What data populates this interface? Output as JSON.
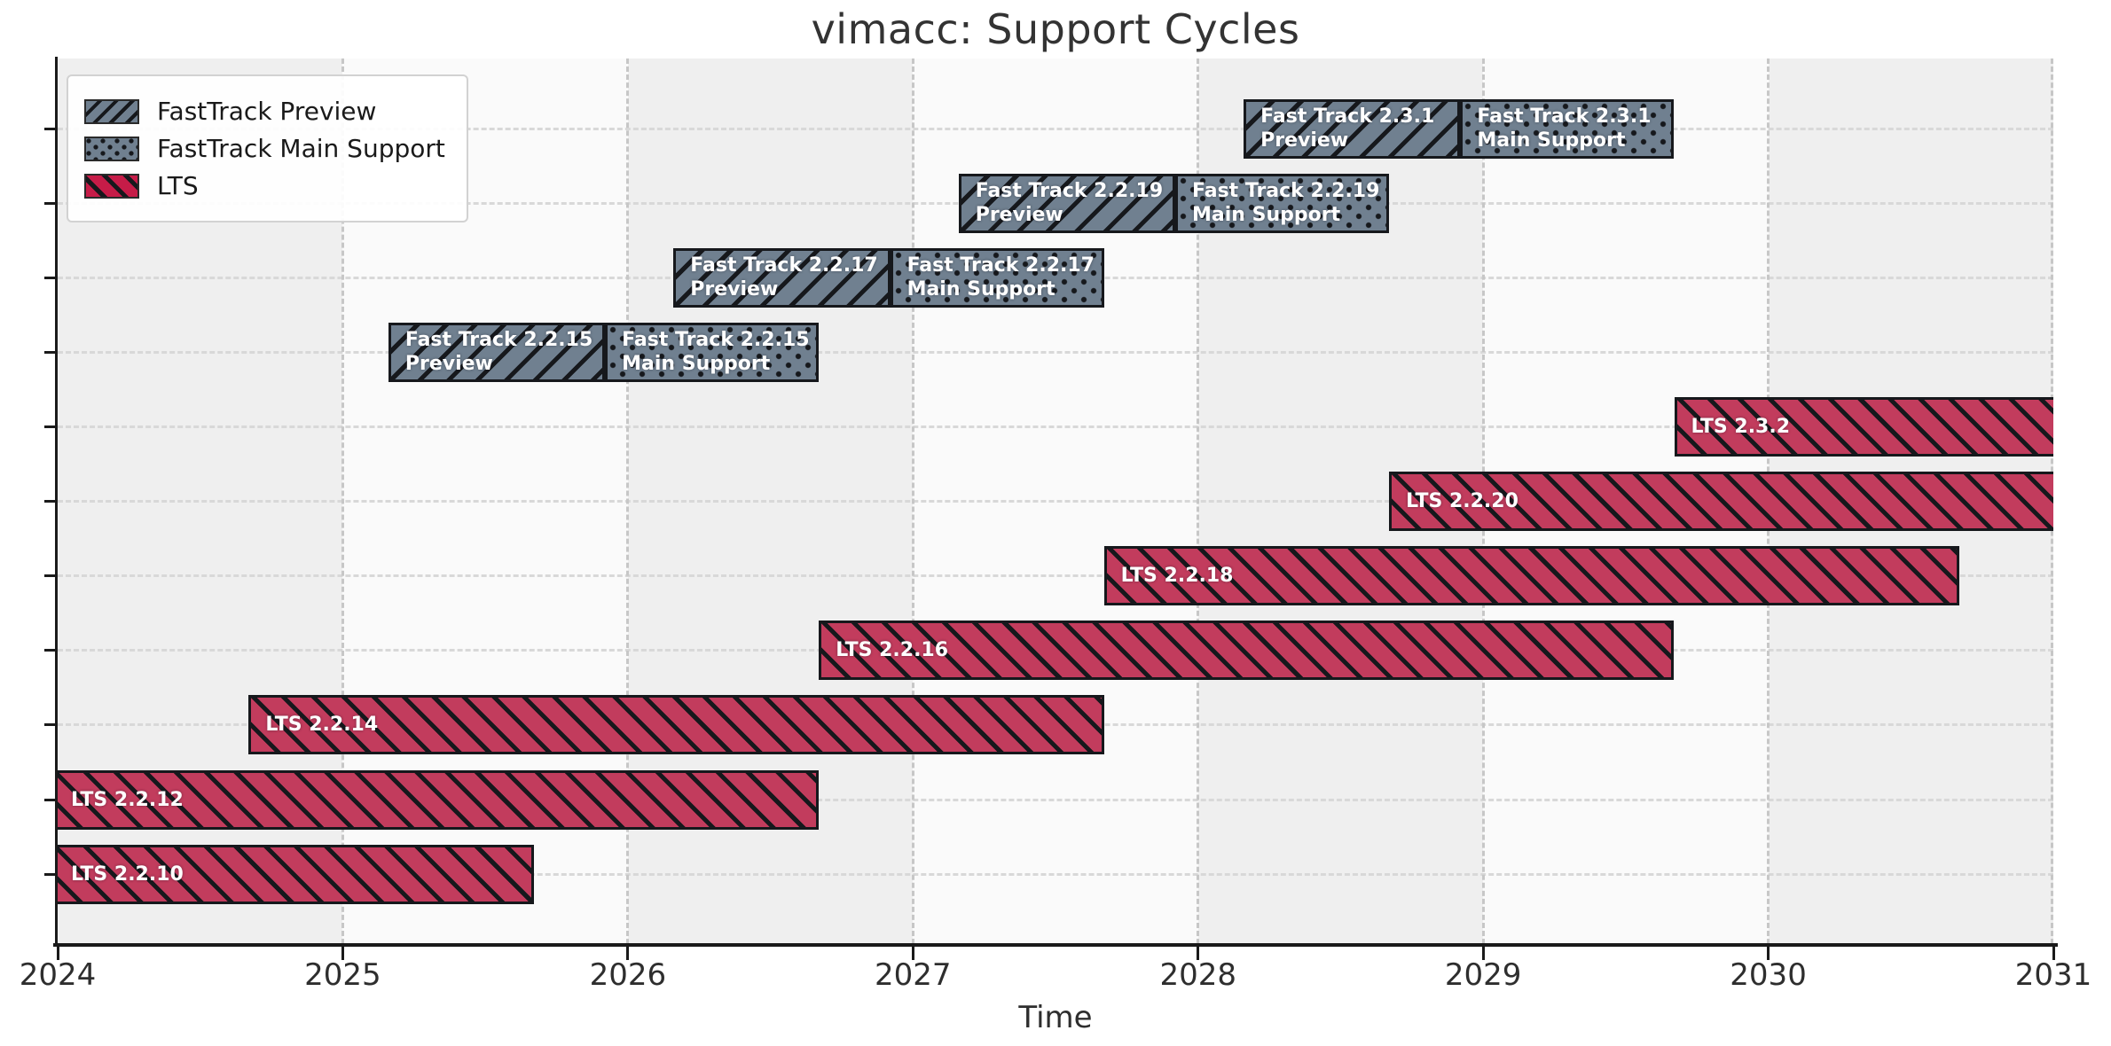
{
  "title": "vimacc: Support Cycles",
  "colors": {
    "fasttrack_fill": "#708090",
    "lts_fill": "#c23c5d",
    "hatch": "#16181c",
    "band_gray": "#efefef",
    "band_light": "#fafafa",
    "grid_dash": "#c7c7c7",
    "spine": "#1a1a1a",
    "bar_text": "#ffffff",
    "title_text": "#333333"
  },
  "legend": {
    "items": [
      {
        "label": "FastTrack Preview",
        "style": "preview"
      },
      {
        "label": "FastTrack Main Support",
        "style": "main"
      },
      {
        "label": "LTS",
        "style": "lts"
      }
    ]
  },
  "chart_data": {
    "type": "gantt-bar",
    "title": "vimacc: Support Cycles",
    "xlabel": "Time",
    "xlim": [
      2024,
      2031
    ],
    "x_ticks": [
      "2024",
      "2025",
      "2026",
      "2027",
      "2028",
      "2029",
      "2030",
      "2031"
    ],
    "n_rows": 11,
    "grid": true,
    "legend_position": "upper left",
    "band_alternation": "year bands alternate gray/light starting gray at 2024",
    "bars": [
      {
        "name": "fast-track-2-3-1-preview",
        "row": 0,
        "style": "preview",
        "lines": [
          "Fast Track 2.3.1",
          "Preview"
        ],
        "start": 2028.16,
        "end": 2028.92,
        "clipped_start": false,
        "clipped_end": false
      },
      {
        "name": "fast-track-2-3-1-main",
        "row": 0,
        "style": "main",
        "lines": [
          "Fast Track 2.3.1",
          "Main Support"
        ],
        "start": 2028.92,
        "end": 2029.67,
        "clipped_start": false,
        "clipped_end": false
      },
      {
        "name": "fast-track-2-2-19-preview",
        "row": 1,
        "style": "preview",
        "lines": [
          "Fast Track 2.2.19",
          "Preview"
        ],
        "start": 2027.16,
        "end": 2027.92,
        "clipped_start": false,
        "clipped_end": false
      },
      {
        "name": "fast-track-2-2-19-main",
        "row": 1,
        "style": "main",
        "lines": [
          "Fast Track 2.2.19",
          "Main Support"
        ],
        "start": 2027.92,
        "end": 2028.67,
        "clipped_start": false,
        "clipped_end": false
      },
      {
        "name": "fast-track-2-2-17-preview",
        "row": 2,
        "style": "preview",
        "lines": [
          "Fast Track 2.2.17",
          "Preview"
        ],
        "start": 2026.16,
        "end": 2026.92,
        "clipped_start": false,
        "clipped_end": false
      },
      {
        "name": "fast-track-2-2-17-main",
        "row": 2,
        "style": "main",
        "lines": [
          "Fast Track 2.2.17",
          "Main Support"
        ],
        "start": 2026.92,
        "end": 2027.67,
        "clipped_start": false,
        "clipped_end": false
      },
      {
        "name": "fast-track-2-2-15-preview",
        "row": 3,
        "style": "preview",
        "lines": [
          "Fast Track 2.2.15",
          "Preview"
        ],
        "start": 2025.16,
        "end": 2025.92,
        "clipped_start": false,
        "clipped_end": false
      },
      {
        "name": "fast-track-2-2-15-main",
        "row": 3,
        "style": "main",
        "lines": [
          "Fast Track 2.2.15",
          "Main Support"
        ],
        "start": 2025.92,
        "end": 2026.67,
        "clipped_start": false,
        "clipped_end": false
      },
      {
        "name": "lts-2-3-2",
        "row": 4,
        "style": "lts",
        "lines": [
          "LTS 2.3.2"
        ],
        "start": 2029.67,
        "end": 2031.0,
        "clipped_start": false,
        "clipped_end": true
      },
      {
        "name": "lts-2-2-20",
        "row": 5,
        "style": "lts",
        "lines": [
          "LTS 2.2.20"
        ],
        "start": 2028.67,
        "end": 2031.0,
        "clipped_start": false,
        "clipped_end": true
      },
      {
        "name": "lts-2-2-18",
        "row": 6,
        "style": "lts",
        "lines": [
          "LTS 2.2.18"
        ],
        "start": 2027.67,
        "end": 2030.67,
        "clipped_start": false,
        "clipped_end": false
      },
      {
        "name": "lts-2-2-16",
        "row": 7,
        "style": "lts",
        "lines": [
          "LTS 2.2.16"
        ],
        "start": 2026.67,
        "end": 2029.67,
        "clipped_start": false,
        "clipped_end": false
      },
      {
        "name": "lts-2-2-14",
        "row": 8,
        "style": "lts",
        "lines": [
          "LTS 2.2.14"
        ],
        "start": 2024.67,
        "end": 2027.67,
        "clipped_start": false,
        "clipped_end": false
      },
      {
        "name": "lts-2-2-12",
        "row": 9,
        "style": "lts",
        "lines": [
          "LTS 2.2.12"
        ],
        "start": 2024.0,
        "end": 2026.67,
        "clipped_start": true,
        "clipped_end": false
      },
      {
        "name": "lts-2-2-10",
        "row": 10,
        "style": "lts",
        "lines": [
          "LTS 2.2.10"
        ],
        "start": 2024.0,
        "end": 2025.67,
        "clipped_start": true,
        "clipped_end": false
      }
    ]
  }
}
